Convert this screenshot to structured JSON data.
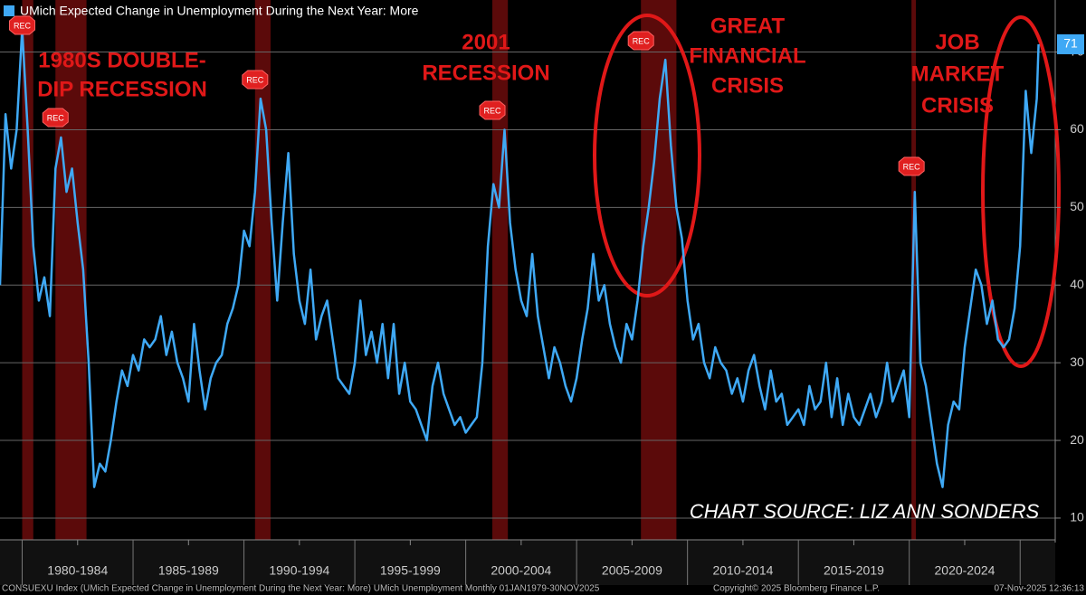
{
  "chart_data": {
    "type": "line",
    "legend": "UMich Expected Change in Unemployment During the Next Year: More",
    "series": [
      {
        "name": "UMich Expected Change in Unemployment During the Next Year: More",
        "color": "#3fa9f5",
        "values": [
          40,
          62,
          55,
          60,
          73,
          60,
          45,
          38,
          41,
          36,
          55,
          59,
          52,
          55,
          48,
          42,
          30,
          14,
          17,
          16,
          20,
          25,
          29,
          27,
          31,
          29,
          33,
          32,
          33,
          36,
          31,
          34,
          30,
          28,
          25,
          35,
          29,
          24,
          28,
          30,
          31,
          35,
          37,
          40,
          47,
          45,
          52,
          64,
          60,
          48,
          38,
          48,
          57,
          44,
          38,
          35,
          42,
          33,
          36,
          38,
          33,
          28,
          27,
          26,
          30,
          38,
          31,
          34,
          30,
          35,
          28,
          35,
          26,
          30,
          25,
          24,
          22,
          20,
          27,
          30,
          26,
          24,
          22,
          23,
          21,
          22,
          23,
          30,
          45,
          53,
          50,
          60,
          48,
          42,
          38,
          36,
          44,
          36,
          32,
          28,
          32,
          30,
          27,
          25,
          28,
          33,
          37,
          44,
          38,
          40,
          35,
          32,
          30,
          35,
          33,
          38,
          45,
          50,
          56,
          64,
          69,
          58,
          50,
          46,
          38,
          33,
          35,
          30,
          28,
          32,
          30,
          29,
          26,
          28,
          25,
          29,
          31,
          27,
          24,
          29,
          25,
          26,
          22,
          23,
          24,
          22,
          27,
          24,
          25,
          30,
          23,
          28,
          22,
          26,
          23,
          22,
          24,
          26,
          23,
          25,
          30,
          25,
          27,
          29,
          23,
          52,
          30,
          27,
          22,
          17,
          14,
          22,
          25,
          24,
          32,
          37,
          42,
          40,
          35,
          38,
          33,
          32,
          33,
          37,
          45,
          65,
          57,
          64,
          71
        ]
      }
    ],
    "x": [
      1979,
      1979.25,
      1979.5,
      1979.75,
      1980,
      1980.25,
      1980.5,
      1980.75,
      1981,
      1981.25,
      1981.5,
      1981.75,
      1982,
      1982.25,
      1982.5,
      1982.75,
      1983,
      1983.25,
      1983.5,
      1983.75,
      1984,
      1984.25,
      1984.5,
      1984.75,
      1985,
      1985.25,
      1985.5,
      1985.75,
      1986,
      1986.25,
      1986.5,
      1986.75,
      1987,
      1987.25,
      1987.5,
      1987.75,
      1988,
      1988.25,
      1988.5,
      1988.75,
      1989,
      1989.25,
      1989.5,
      1989.75,
      1990,
      1990.25,
      1990.5,
      1990.75,
      1991,
      1991.25,
      1991.5,
      1991.75,
      1992,
      1992.25,
      1992.5,
      1992.75,
      1993,
      1993.25,
      1993.5,
      1993.75,
      1994,
      1994.25,
      1994.5,
      1994.75,
      1995,
      1995.25,
      1995.5,
      1995.75,
      1996,
      1996.25,
      1996.5,
      1996.75,
      1997,
      1997.25,
      1997.5,
      1997.75,
      1998,
      1998.25,
      1998.5,
      1998.75,
      1999,
      1999.25,
      1999.5,
      1999.75,
      2000,
      2000.25,
      2000.5,
      2000.75,
      2001,
      2001.25,
      2001.5,
      2001.75,
      2002,
      2002.25,
      2002.5,
      2002.75,
      2003,
      2003.25,
      2003.5,
      2003.75,
      2004,
      2004.25,
      2004.5,
      2004.75,
      2005,
      2005.25,
      2005.5,
      2005.75,
      2006,
      2006.25,
      2006.5,
      2006.75,
      2007,
      2007.25,
      2007.5,
      2007.75,
      2008,
      2008.25,
      2008.5,
      2008.75,
      2009,
      2009.25,
      2009.5,
      2009.75,
      2010,
      2010.25,
      2010.5,
      2010.75,
      2011,
      2011.25,
      2011.5,
      2011.75,
      2012,
      2012.25,
      2012.5,
      2012.75,
      2013,
      2013.25,
      2013.5,
      2013.75,
      2014,
      2014.25,
      2014.5,
      2014.75,
      2015,
      2015.25,
      2015.5,
      2015.75,
      2016,
      2016.25,
      2016.5,
      2016.75,
      2017,
      2017.25,
      2017.5,
      2017.75,
      2018,
      2018.25,
      2018.5,
      2018.75,
      2019,
      2019.25,
      2019.5,
      2019.75,
      2020,
      2020.25,
      2020.5,
      2020.75,
      2021,
      2021.25,
      2021.5,
      2021.75,
      2022,
      2022.25,
      2022.5,
      2022.75,
      2023,
      2023.25,
      2023.5,
      2023.75,
      2024,
      2024.25,
      2024.5,
      2024.75,
      2025,
      2025.25,
      2025.5,
      2025.75,
      2025.83
    ],
    "xlim": [
      1979,
      2026.5
    ],
    "xticks": [
      {
        "value": 1982.5,
        "label": "1980-1984"
      },
      {
        "value": 1987.5,
        "label": "1985-1989"
      },
      {
        "value": 1992.5,
        "label": "1990-1994"
      },
      {
        "value": 1997.5,
        "label": "1995-1999"
      },
      {
        "value": 2002.5,
        "label": "2000-2004"
      },
      {
        "value": 2007.5,
        "label": "2005-2009"
      },
      {
        "value": 2012.5,
        "label": "2010-2014"
      },
      {
        "value": 2017.5,
        "label": "2015-2019"
      },
      {
        "value": 2022.5,
        "label": "2020-2024"
      }
    ],
    "ylim": [
      7.2,
      76.7
    ],
    "yticks": [
      10,
      20,
      30,
      40,
      50,
      60,
      70
    ],
    "grid": true,
    "recessions": [
      {
        "start": 1980,
        "end": 1980.5,
        "label": "REC"
      },
      {
        "start": 1981.5,
        "end": 1982.9,
        "label": "REC"
      },
      {
        "start": 1990.5,
        "end": 1991.2,
        "label": "REC"
      },
      {
        "start": 2001.2,
        "end": 2001.9,
        "label": "REC"
      },
      {
        "start": 2007.9,
        "end": 2009.5,
        "label": "REC"
      },
      {
        "start": 2020.1,
        "end": 2020.3,
        "label": "REC"
      }
    ],
    "annotations": [
      {
        "lines": [
          "1980S DOUBLE-",
          "DIP RECESSION"
        ]
      },
      {
        "lines": [
          "2001",
          "RECESSION"
        ]
      },
      {
        "lines": [
          "GREAT",
          "FINANCIAL",
          "CRISIS"
        ]
      },
      {
        "lines": [
          "JOB",
          "MARKET",
          "CRISIS"
        ]
      }
    ],
    "source": "CHART SOURCE: LIZ ANN SONDERS",
    "footer": {
      "left": "CONSUEXU Index (UMich Expected Change in Unemployment During the Next Year: More) UMich Unemployment Monthly 01JAN1979-30NOV2025",
      "middle": "Copyright© 2025 Bloomberg Finance L.P.",
      "right": "07-Nov-2025 12:36:13"
    }
  }
}
